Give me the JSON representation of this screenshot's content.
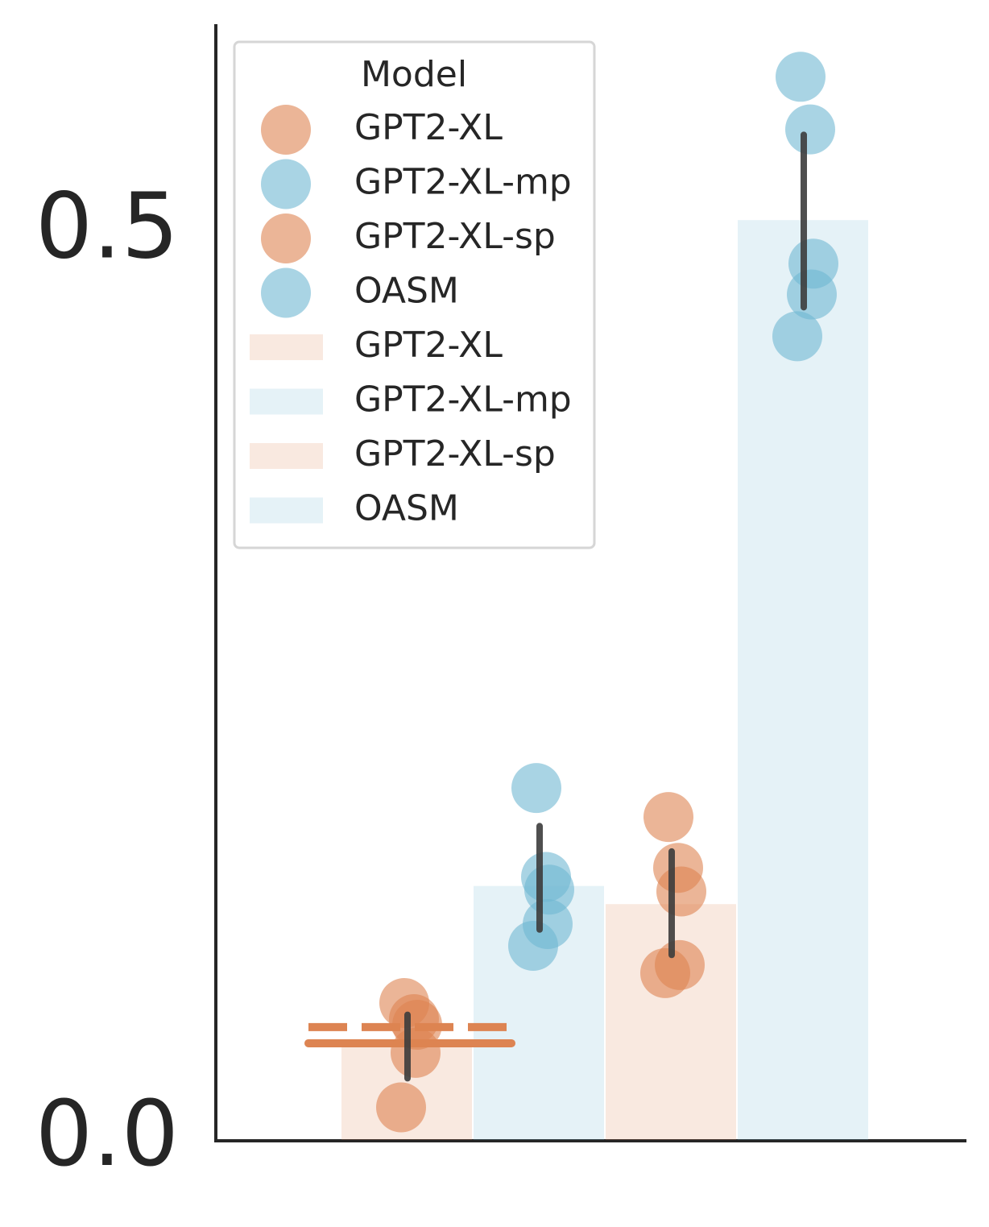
{
  "chart_data": {
    "type": "bar-strip",
    "legend_title": "Model",
    "ylim": [
      0,
      0.615
    ],
    "yticks": [
      {
        "value": 0,
        "label": "0.0"
      },
      0.5
    ],
    "series": [
      {
        "name": "GPT2-XL",
        "color": "#dd8452",
        "value": 0.052,
        "points": [
          0.0755,
          0.0666,
          0.0635,
          0.048,
          0.018
        ],
        "ci": [
          0.034,
          0.069
        ]
      },
      {
        "name": "GPT2-XL-mp",
        "color": "#6fb8d2",
        "value": 0.14,
        "points": [
          0.194,
          0.145,
          0.138,
          0.119,
          0.107
        ],
        "ci": [
          0.116,
          0.173
        ]
      },
      {
        "name": "GPT2-XL-sp",
        "color": "#dd8452",
        "value": 0.13,
        "points": [
          0.178,
          0.15,
          0.137,
          0.0964,
          0.092
        ],
        "ci": [
          0.102,
          0.159
        ]
      },
      {
        "name": "OASM",
        "color": "#6fb8d2",
        "value": 0.507,
        "points": [
          0.586,
          0.557,
          0.483,
          0.466,
          0.443
        ],
        "ci": [
          0.459,
          0.554
        ]
      }
    ],
    "hlines": [
      {
        "value": 0.0533,
        "style": "solid",
        "color": "#dd8452"
      },
      {
        "value": 0.0622,
        "style": "dashed",
        "color": "#dd8452"
      }
    ]
  }
}
